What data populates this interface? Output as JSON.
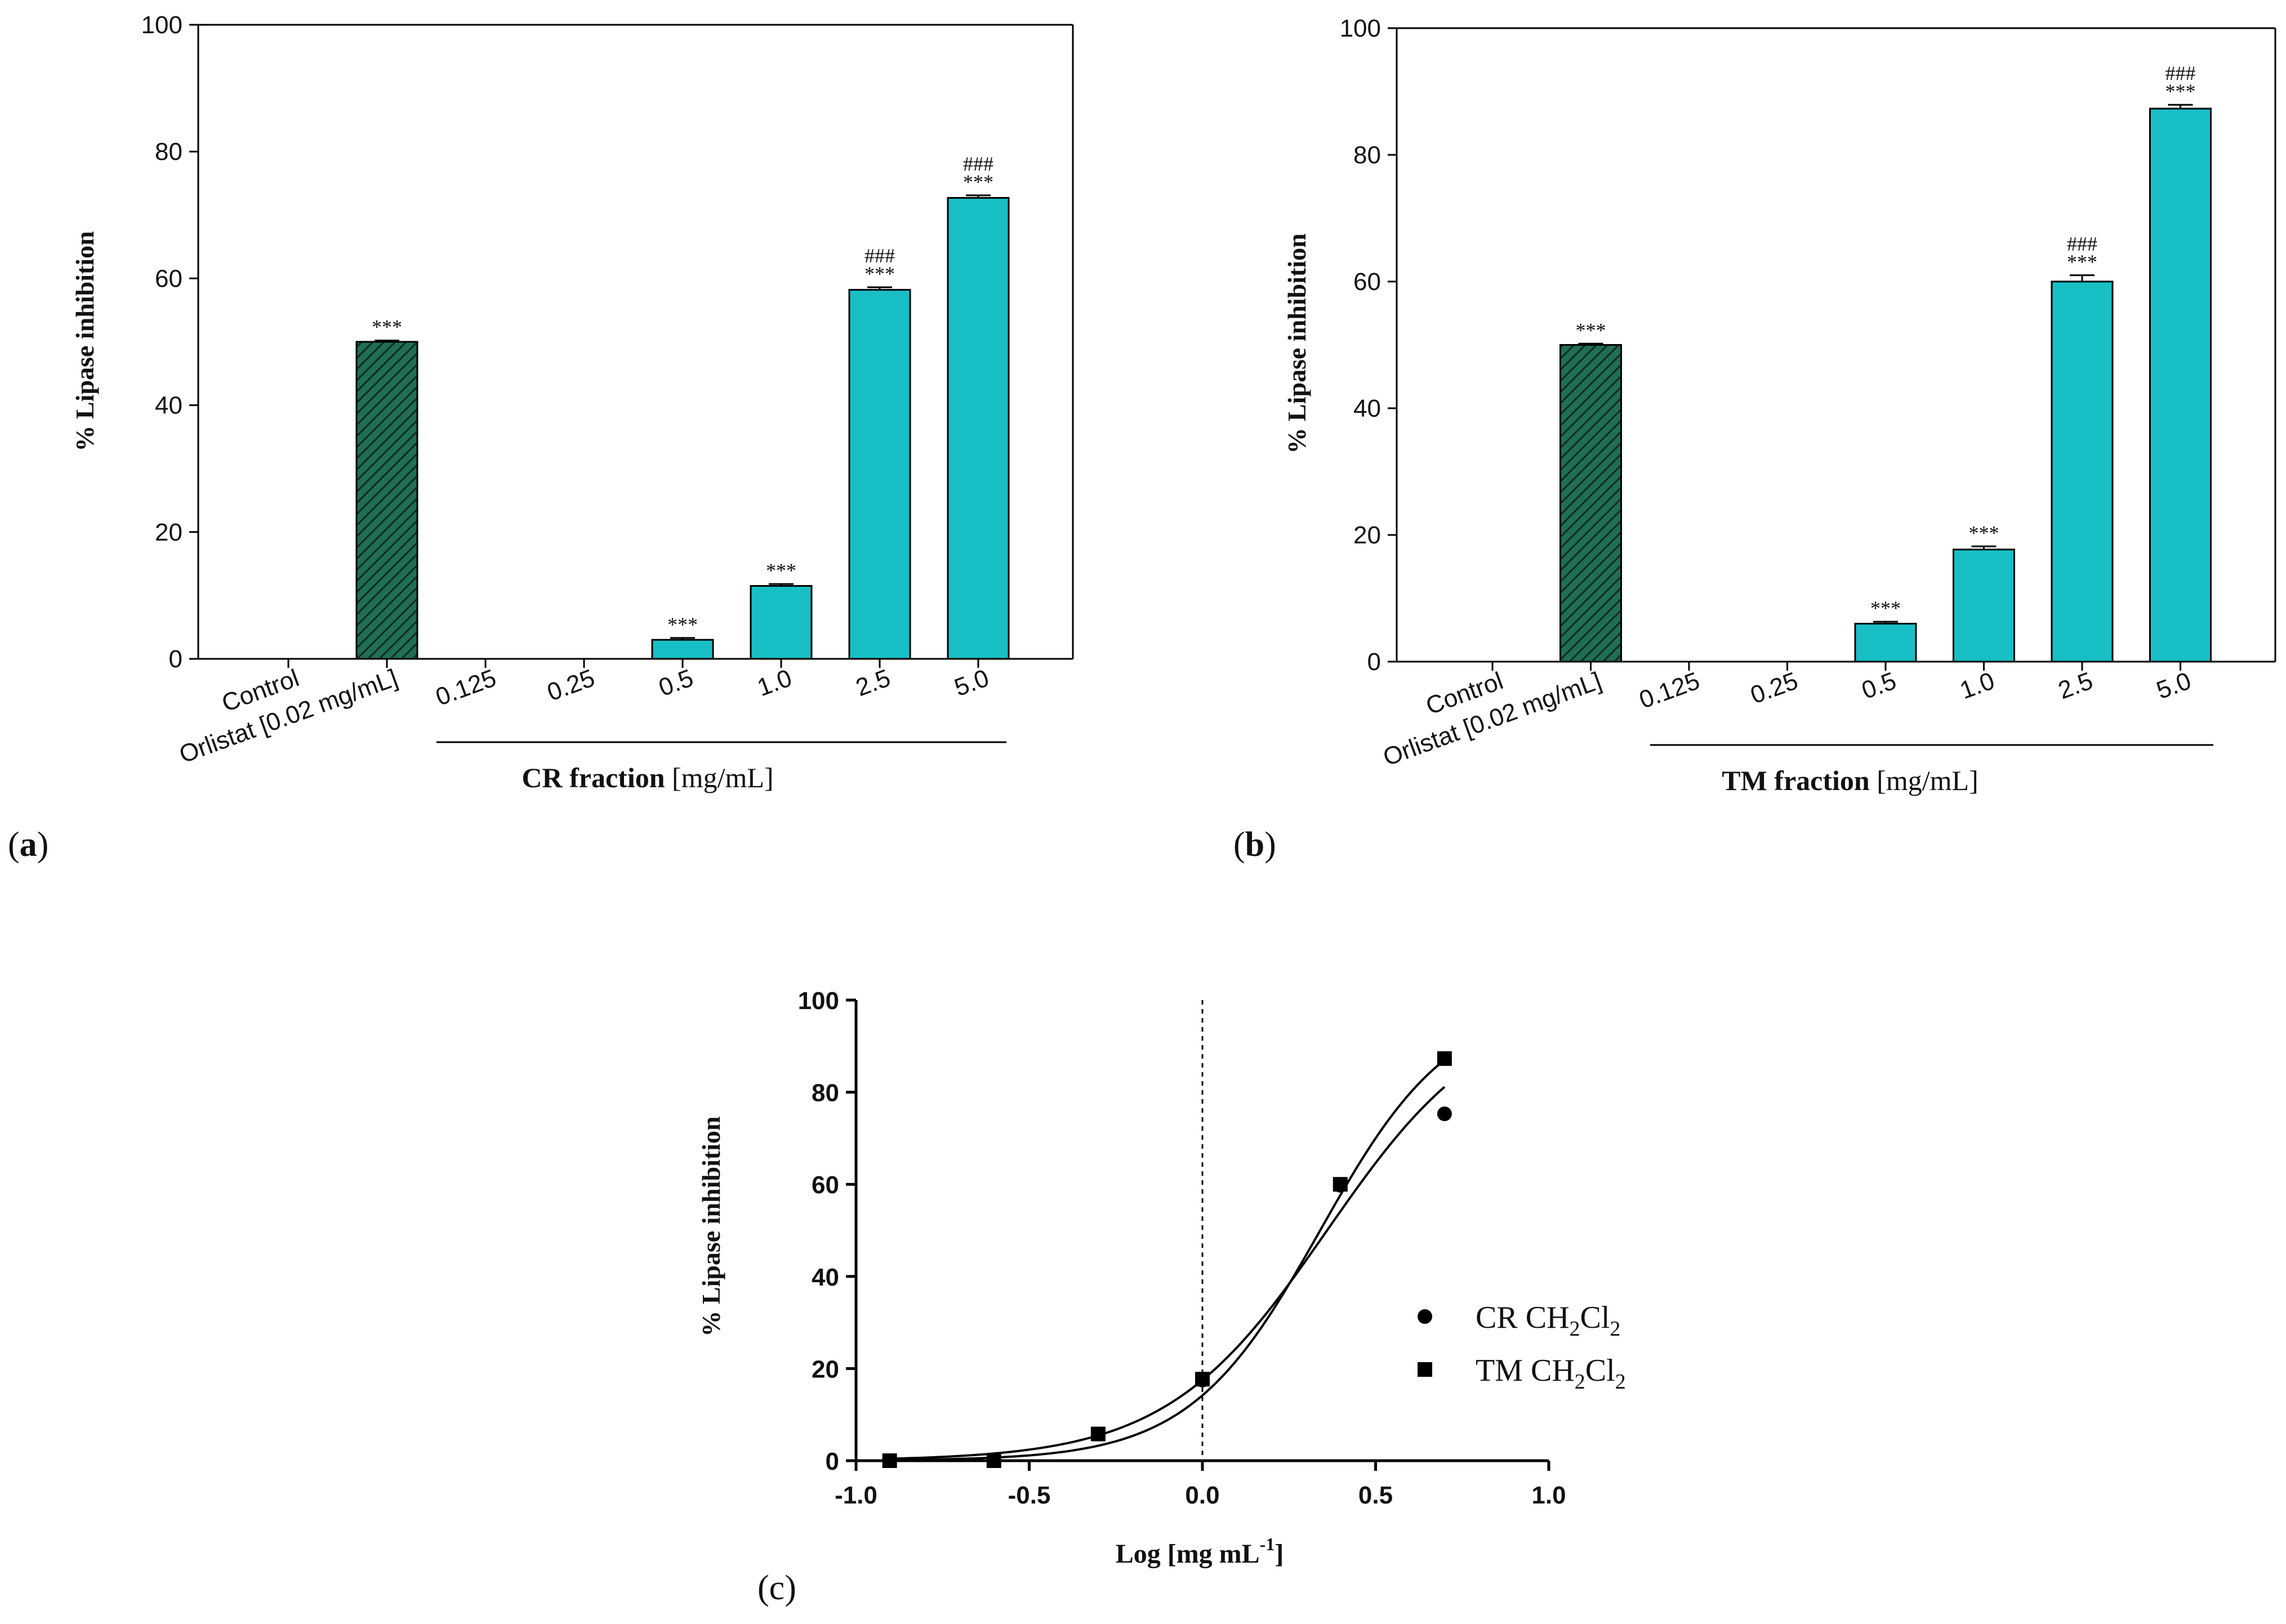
{
  "colors": {
    "bar_fill": "#17bfc4",
    "orlistat_fill": "#1f6e55",
    "orlistat_hatch": "#0c2a20",
    "axis": "#000000"
  },
  "chart_data": [
    {
      "panel_label": "(a)",
      "panel_letter": "a",
      "type": "bar",
      "ylabel": "% Lipase inhibition",
      "xlabel_bold": "CR fraction",
      "xlabel_unit": " [mg/mL]",
      "ylim": [
        0,
        100
      ],
      "yticks": [
        "0",
        "20",
        "40",
        "60",
        "80",
        "100"
      ],
      "categories": [
        "Control",
        "Orlistat [0.02  mg/mL]",
        "0.125",
        "0.25",
        "0.5",
        "1.0",
        "2.5",
        "5.0"
      ],
      "values": [
        0,
        50,
        0,
        0,
        3,
        11.5,
        58.2,
        72.7
      ],
      "errors": [
        0,
        0.2,
        0,
        0,
        0.3,
        0.3,
        0.4,
        0.4
      ],
      "hatched": [
        false,
        true,
        false,
        false,
        false,
        false,
        false,
        false
      ],
      "sig_stars": [
        "",
        "***",
        "",
        "",
        "***",
        "***",
        "***",
        "***"
      ],
      "sig_hash": [
        "",
        "",
        "",
        "",
        "",
        "",
        "###",
        "###"
      ]
    },
    {
      "panel_label": "(b)",
      "panel_letter": "b",
      "type": "bar",
      "ylabel": "% Lipase inhibition",
      "xlabel_bold": "TM fraction",
      "xlabel_unit": " [mg/mL]",
      "ylim": [
        0,
        100
      ],
      "yticks": [
        "0",
        "20",
        "40",
        "60",
        "80",
        "100"
      ],
      "categories": [
        "Control",
        "Orlistat [0.02  mg/mL]",
        "0.125",
        "0.25",
        "0.5",
        "1.0",
        "2.5",
        "5.0"
      ],
      "values": [
        0,
        50,
        0,
        0,
        6,
        17.7,
        60,
        87.3
      ],
      "errors": [
        0,
        0.2,
        0,
        0,
        0.3,
        0.5,
        1.0,
        0.6
      ],
      "hatched": [
        false,
        true,
        false,
        false,
        false,
        false,
        false,
        false
      ],
      "sig_stars": [
        "",
        "***",
        "",
        "",
        "***",
        "***",
        "***",
        "***"
      ],
      "sig_hash": [
        "",
        "",
        "",
        "",
        "",
        "",
        "###",
        "###"
      ]
    },
    {
      "panel_label": "(c)",
      "panel_letter": "c",
      "type": "scatter",
      "ylabel": "% Lipase inhibition",
      "xlabel_main": "Log [mg mL",
      "xlabel_sup": "-1",
      "xlabel_close": "]",
      "xlim": [
        -1.0,
        1.0
      ],
      "ylim": [
        0,
        100
      ],
      "xticks": [
        "-1.0",
        "-0.5",
        "0.0",
        "0.5",
        "1.0"
      ],
      "yticks": [
        "0",
        "20",
        "40",
        "60",
        "80",
        "100"
      ],
      "reference_line_x": 0.0,
      "series": [
        {
          "name": "CR CH2Cl2",
          "legend_parts": [
            "CR CH",
            "2",
            "Cl",
            "2"
          ],
          "marker": "circle",
          "x": [
            -0.903,
            -0.602,
            -0.301,
            0.0,
            0.398,
            0.699
          ],
          "y": [
            0,
            0,
            5.8,
            17.5,
            59.8,
            75.3
          ],
          "fit": {
            "bottom": 0,
            "top": 100,
            "logEC50": 0.36,
            "hillslope": 1.87
          }
        },
        {
          "name": "TM CH2Cl2",
          "legend_parts": [
            "TM CH",
            "2",
            "Cl",
            "2"
          ],
          "marker": "square",
          "x": [
            -0.903,
            -0.602,
            -0.301,
            0.0,
            0.398,
            0.699
          ],
          "y": [
            0,
            0,
            5.8,
            17.7,
            60,
            87.3
          ],
          "fit": {
            "bottom": 0,
            "top": 100,
            "logEC50": 0.34,
            "hillslope": 2.3
          }
        }
      ]
    }
  ]
}
